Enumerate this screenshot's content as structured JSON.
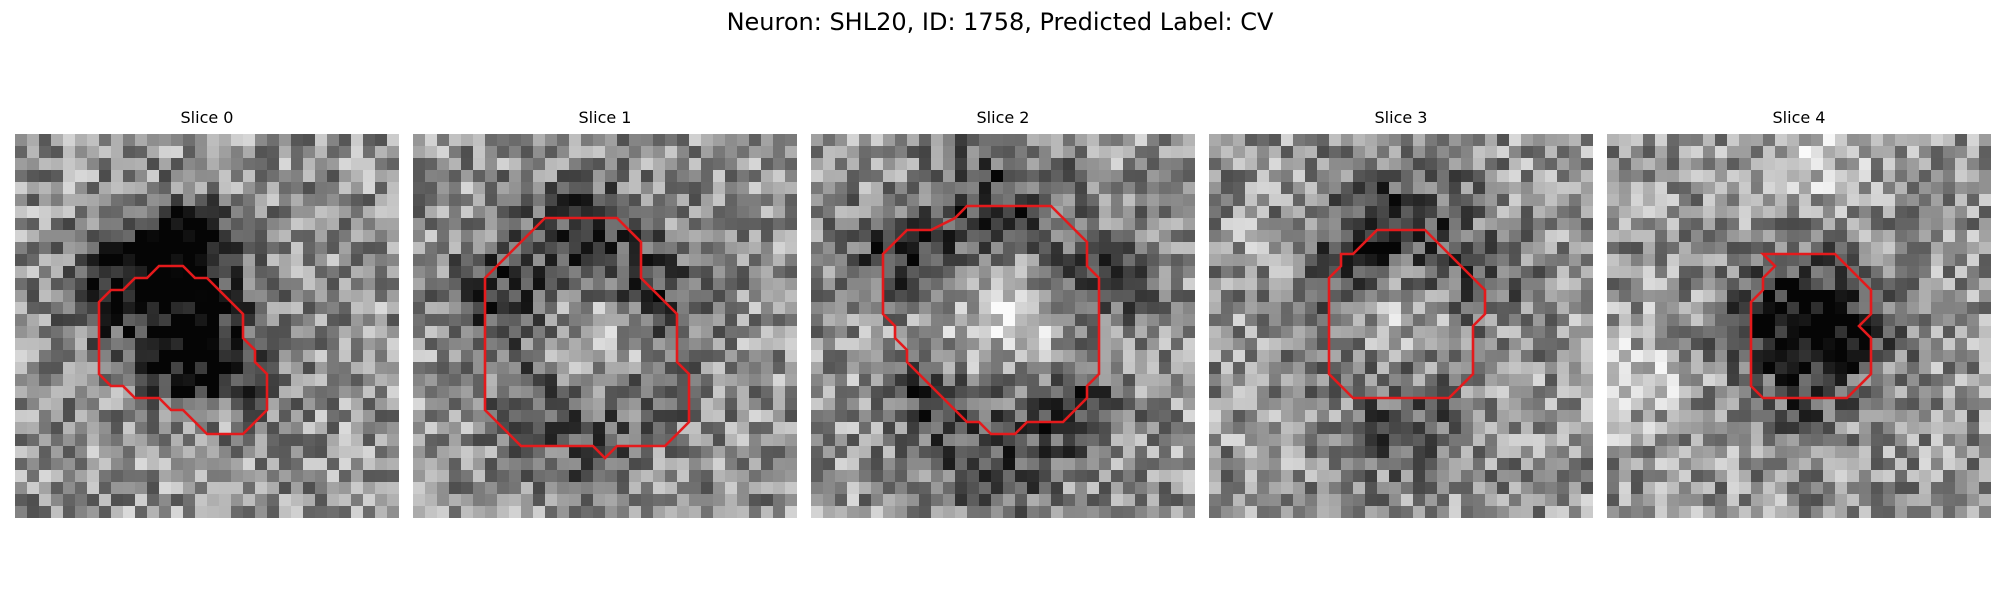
{
  "figure": {
    "title": "Neuron: SHL20, ID: 1758, Predicted Label: CV"
  },
  "panels": [
    {
      "title": "Slice 0",
      "contour": [
        [
          12,
          11
        ],
        [
          14,
          11
        ],
        [
          15,
          12
        ],
        [
          16,
          12
        ],
        [
          17,
          13
        ],
        [
          18,
          14
        ],
        [
          19,
          15
        ],
        [
          19,
          17
        ],
        [
          20,
          18
        ],
        [
          20,
          19
        ],
        [
          21,
          20
        ],
        [
          21,
          23
        ],
        [
          20,
          24
        ],
        [
          19,
          25
        ],
        [
          18,
          25
        ],
        [
          17,
          25
        ],
        [
          16,
          25
        ],
        [
          15,
          24
        ],
        [
          14,
          23
        ],
        [
          13,
          23
        ],
        [
          12,
          22
        ],
        [
          11,
          22
        ],
        [
          10,
          22
        ],
        [
          9,
          21
        ],
        [
          8,
          21
        ],
        [
          7,
          20
        ],
        [
          7,
          16
        ],
        [
          7,
          14
        ],
        [
          8,
          13
        ],
        [
          9,
          13
        ],
        [
          10,
          12
        ],
        [
          11,
          12
        ]
      ],
      "dark_blobs": [
        [
          11,
          10,
          3.2,
          1.0
        ],
        [
          15,
          9,
          2.6,
          1.1
        ],
        [
          8,
          13,
          3.0,
          0.9
        ],
        [
          16,
          16,
          3.0,
          0.8
        ],
        [
          13,
          19,
          2.4,
          0.9
        ],
        [
          18,
          21,
          2.5,
          0.6
        ],
        [
          14,
          16,
          2.0,
          0.6
        ]
      ],
      "bright_blobs": [
        [
          12,
          16,
          2.0,
          0.5
        ],
        [
          17,
          23,
          1.0,
          0.5
        ]
      ]
    },
    {
      "title": "Slice 1",
      "contour": [
        [
          11,
          7
        ],
        [
          14,
          7
        ],
        [
          17,
          7
        ],
        [
          18,
          8
        ],
        [
          19,
          9
        ],
        [
          19,
          12
        ],
        [
          20,
          13
        ],
        [
          21,
          14
        ],
        [
          22,
          15
        ],
        [
          22,
          19
        ],
        [
          23,
          20
        ],
        [
          23,
          24
        ],
        [
          22,
          25
        ],
        [
          21,
          26
        ],
        [
          19,
          26
        ],
        [
          18,
          26
        ],
        [
          17,
          26
        ],
        [
          16,
          27
        ],
        [
          15,
          26
        ],
        [
          14,
          26
        ],
        [
          12,
          26
        ],
        [
          10,
          26
        ],
        [
          9,
          26
        ],
        [
          8,
          25
        ],
        [
          7,
          24
        ],
        [
          6,
          23
        ],
        [
          6,
          20
        ],
        [
          6,
          16
        ],
        [
          6,
          12
        ],
        [
          7,
          11
        ],
        [
          8,
          10
        ],
        [
          9,
          9
        ],
        [
          10,
          8
        ]
      ],
      "dark_blobs": [
        [
          14,
          8,
          3.4,
          1.0
        ],
        [
          7,
          13,
          3.2,
          1.0
        ],
        [
          20,
          13,
          3.0,
          0.9
        ],
        [
          14,
          24,
          4.0,
          0.7
        ],
        [
          21,
          20,
          2.4,
          0.6
        ],
        [
          9,
          21,
          2.5,
          0.6
        ]
      ],
      "bright_blobs": [
        [
          14,
          16,
          5.0,
          0.6
        ],
        [
          17,
          17,
          2.0,
          0.3
        ]
      ]
    },
    {
      "title": "Slice 2",
      "contour": [
        [
          10,
          8
        ],
        [
          12,
          7
        ],
        [
          13,
          6
        ],
        [
          14,
          6
        ],
        [
          16,
          6
        ],
        [
          18,
          6
        ],
        [
          20,
          6
        ],
        [
          21,
          7
        ],
        [
          22,
          8
        ],
        [
          23,
          9
        ],
        [
          23,
          11
        ],
        [
          24,
          12
        ],
        [
          24,
          16
        ],
        [
          24,
          20
        ],
        [
          23,
          21
        ],
        [
          23,
          22
        ],
        [
          22,
          23
        ],
        [
          21,
          24
        ],
        [
          20,
          24
        ],
        [
          19,
          24
        ],
        [
          18,
          24
        ],
        [
          17,
          25
        ],
        [
          16,
          25
        ],
        [
          15,
          25
        ],
        [
          14,
          24
        ],
        [
          13,
          24
        ],
        [
          12,
          23
        ],
        [
          11,
          22
        ],
        [
          10,
          21
        ],
        [
          9,
          20
        ],
        [
          8,
          19
        ],
        [
          8,
          18
        ],
        [
          7,
          17
        ],
        [
          7,
          16
        ],
        [
          6,
          15
        ],
        [
          6,
          13
        ],
        [
          6,
          10
        ],
        [
          7,
          9
        ],
        [
          8,
          8
        ],
        [
          9,
          8
        ]
      ],
      "dark_blobs": [
        [
          15,
          6,
          4.0,
          1.0
        ],
        [
          7,
          10,
          3.0,
          1.0
        ],
        [
          23,
          12,
          3.0,
          1.0
        ],
        [
          15,
          25,
          4.0,
          0.9
        ],
        [
          22,
          22,
          2.5,
          0.9
        ],
        [
          9,
          21,
          2.5,
          0.8
        ]
      ],
      "bright_blobs": [
        [
          15,
          15,
          5.5,
          0.7
        ],
        [
          18,
          13,
          2.5,
          0.3
        ]
      ]
    },
    {
      "title": "Slice 3",
      "contour": [
        [
          14,
          8
        ],
        [
          16,
          8
        ],
        [
          17,
          8
        ],
        [
          18,
          8
        ],
        [
          19,
          9
        ],
        [
          20,
          10
        ],
        [
          21,
          11
        ],
        [
          22,
          12
        ],
        [
          23,
          13
        ],
        [
          23,
          15
        ],
        [
          22,
          16
        ],
        [
          22,
          17
        ],
        [
          22,
          20
        ],
        [
          21,
          21
        ],
        [
          20,
          22
        ],
        [
          18,
          22
        ],
        [
          16,
          22
        ],
        [
          14,
          22
        ],
        [
          13,
          22
        ],
        [
          12,
          22
        ],
        [
          11,
          21
        ],
        [
          10,
          20
        ],
        [
          10,
          18
        ],
        [
          10,
          15
        ],
        [
          10,
          12
        ],
        [
          11,
          11
        ],
        [
          11,
          10
        ],
        [
          12,
          10
        ],
        [
          13,
          9
        ]
      ],
      "dark_blobs": [
        [
          16,
          7,
          3.5,
          0.9
        ],
        [
          11,
          10,
          2.5,
          0.8
        ],
        [
          22,
          12,
          2.5,
          0.8
        ],
        [
          16,
          23,
          3.5,
          0.7
        ],
        [
          9,
          17,
          2.0,
          0.6
        ]
      ],
      "bright_blobs": [
        [
          16,
          15,
          4.0,
          0.5
        ],
        [
          4,
          9,
          1.0,
          0.7
        ]
      ]
    },
    {
      "title": "Slice 4",
      "contour": [
        [
          13,
          10
        ],
        [
          15,
          10
        ],
        [
          17,
          10
        ],
        [
          19,
          10
        ],
        [
          20,
          11
        ],
        [
          21,
          12
        ],
        [
          22,
          13
        ],
        [
          22,
          15
        ],
        [
          21,
          16
        ],
        [
          22,
          17
        ],
        [
          22,
          20
        ],
        [
          21,
          21
        ],
        [
          20,
          22
        ],
        [
          18,
          22
        ],
        [
          16,
          22
        ],
        [
          14,
          22
        ],
        [
          13,
          22
        ],
        [
          12,
          21
        ],
        [
          12,
          18
        ],
        [
          12,
          15
        ],
        [
          12,
          14
        ],
        [
          13,
          13
        ],
        [
          13,
          12
        ],
        [
          14,
          11
        ]
      ],
      "dark_blobs": [
        [
          16,
          13,
          3.0,
          1.0
        ],
        [
          11,
          16,
          2.0,
          0.8
        ],
        [
          21,
          16,
          2.2,
          0.8
        ],
        [
          16,
          20,
          3.0,
          0.8
        ],
        [
          17,
          16,
          2.0,
          0.7
        ]
      ],
      "bright_blobs": [
        [
          17,
          1,
          2.5,
          0.6
        ],
        [
          2,
          20,
          3.0,
          0.6
        ]
      ]
    }
  ]
}
